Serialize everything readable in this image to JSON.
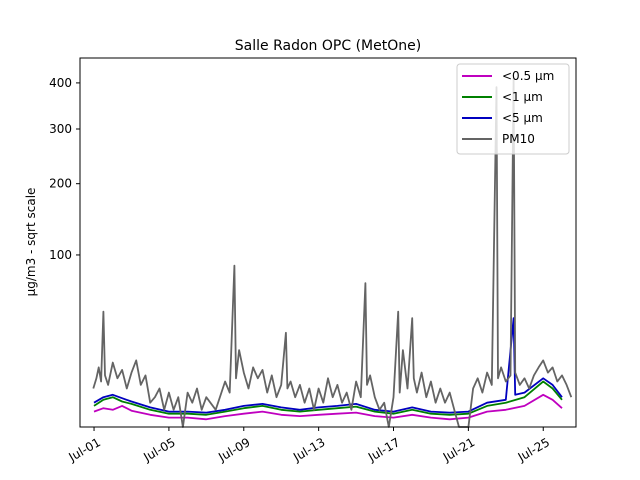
{
  "chart_data": {
    "type": "line",
    "title": "Salle Radon OPC (MetOne)",
    "xlabel": "",
    "ylabel": "µg/m3 - sqrt scale",
    "y_scale": "sqrt",
    "ylim": [
      0,
      460
    ],
    "xlim": [
      "2023-06-30T06:00",
      "2023-07-26T18:00"
    ],
    "x_ticks": [
      {
        "date": "2023-07-01",
        "label": "Jul-01"
      },
      {
        "date": "2023-07-05",
        "label": "Jul-05"
      },
      {
        "date": "2023-07-09",
        "label": "Jul-09"
      },
      {
        "date": "2023-07-13",
        "label": "Jul-13"
      },
      {
        "date": "2023-07-17",
        "label": "Jul-17"
      },
      {
        "date": "2023-07-21",
        "label": "Jul-21"
      },
      {
        "date": "2023-07-25",
        "label": "Jul-25"
      }
    ],
    "y_ticks": [
      100,
      200,
      300,
      400
    ],
    "grid": false,
    "legend_position": "top-right",
    "series": [
      {
        "name": "<0.5 µm",
        "color": "#bf00bf",
        "points": [
          [
            "2023-07-01T00:00",
            0.8
          ],
          [
            "2023-07-01T12:00",
            1.2
          ],
          [
            "2023-07-02T00:00",
            1.0
          ],
          [
            "2023-07-02T12:00",
            1.5
          ],
          [
            "2023-07-03T00:00",
            0.9
          ],
          [
            "2023-07-04T00:00",
            0.5
          ],
          [
            "2023-07-05T00:00",
            0.3
          ],
          [
            "2023-07-06T00:00",
            0.3
          ],
          [
            "2023-07-07T00:00",
            0.2
          ],
          [
            "2023-07-08T00:00",
            0.4
          ],
          [
            "2023-07-09T00:00",
            0.6
          ],
          [
            "2023-07-10T00:00",
            0.8
          ],
          [
            "2023-07-11T00:00",
            0.5
          ],
          [
            "2023-07-12T00:00",
            0.4
          ],
          [
            "2023-07-13T00:00",
            0.5
          ],
          [
            "2023-07-14T00:00",
            0.6
          ],
          [
            "2023-07-15T00:00",
            0.7
          ],
          [
            "2023-07-16T00:00",
            0.4
          ],
          [
            "2023-07-17T00:00",
            0.3
          ],
          [
            "2023-07-18T00:00",
            0.5
          ],
          [
            "2023-07-19T00:00",
            0.3
          ],
          [
            "2023-07-20T00:00",
            0.2
          ],
          [
            "2023-07-21T00:00",
            0.3
          ],
          [
            "2023-07-22T00:00",
            0.8
          ],
          [
            "2023-07-23T00:00",
            1.0
          ],
          [
            "2023-07-24T00:00",
            1.5
          ],
          [
            "2023-07-25T00:00",
            3.5
          ],
          [
            "2023-07-25T12:00",
            2.5
          ],
          [
            "2023-07-26T00:00",
            1.2
          ]
        ]
      },
      {
        "name": "<1 µm",
        "color": "#008000",
        "points": [
          [
            "2023-07-01T00:00",
            1.5
          ],
          [
            "2023-07-01T12:00",
            2.5
          ],
          [
            "2023-07-02T00:00",
            3.0
          ],
          [
            "2023-07-02T12:00",
            2.2
          ],
          [
            "2023-07-03T00:00",
            1.8
          ],
          [
            "2023-07-04T00:00",
            1.0
          ],
          [
            "2023-07-05T00:00",
            0.6
          ],
          [
            "2023-07-06T00:00",
            0.6
          ],
          [
            "2023-07-07T00:00",
            0.5
          ],
          [
            "2023-07-08T00:00",
            0.8
          ],
          [
            "2023-07-09T00:00",
            1.2
          ],
          [
            "2023-07-10T00:00",
            1.5
          ],
          [
            "2023-07-11T00:00",
            1.0
          ],
          [
            "2023-07-12T00:00",
            0.8
          ],
          [
            "2023-07-13T00:00",
            1.0
          ],
          [
            "2023-07-14T00:00",
            1.2
          ],
          [
            "2023-07-15T00:00",
            1.4
          ],
          [
            "2023-07-16T00:00",
            0.8
          ],
          [
            "2023-07-17T00:00",
            0.6
          ],
          [
            "2023-07-18T00:00",
            1.0
          ],
          [
            "2023-07-19T00:00",
            0.6
          ],
          [
            "2023-07-20T00:00",
            0.5
          ],
          [
            "2023-07-21T00:00",
            0.6
          ],
          [
            "2023-07-22T00:00",
            1.5
          ],
          [
            "2023-07-23T00:00",
            2.0
          ],
          [
            "2023-07-24T00:00",
            3.0
          ],
          [
            "2023-07-25T00:00",
            7.0
          ],
          [
            "2023-07-25T12:00",
            5.0
          ],
          [
            "2023-07-26T00:00",
            2.5
          ]
        ]
      },
      {
        "name": "<5 µm",
        "color": "#0000bf",
        "points": [
          [
            "2023-07-01T00:00",
            2.0
          ],
          [
            "2023-07-01T12:00",
            3.0
          ],
          [
            "2023-07-02T00:00",
            3.5
          ],
          [
            "2023-07-02T12:00",
            2.8
          ],
          [
            "2023-07-03T00:00",
            2.2
          ],
          [
            "2023-07-04T00:00",
            1.3
          ],
          [
            "2023-07-05T00:00",
            0.8
          ],
          [
            "2023-07-06T00:00",
            0.8
          ],
          [
            "2023-07-07T00:00",
            0.7
          ],
          [
            "2023-07-08T00:00",
            1.0
          ],
          [
            "2023-07-09T00:00",
            1.5
          ],
          [
            "2023-07-10T00:00",
            1.8
          ],
          [
            "2023-07-11T00:00",
            1.3
          ],
          [
            "2023-07-12T00:00",
            1.0
          ],
          [
            "2023-07-13T00:00",
            1.3
          ],
          [
            "2023-07-14T00:00",
            1.5
          ],
          [
            "2023-07-15T00:00",
            1.8
          ],
          [
            "2023-07-16T00:00",
            1.0
          ],
          [
            "2023-07-17T00:00",
            0.8
          ],
          [
            "2023-07-18T00:00",
            1.3
          ],
          [
            "2023-07-19T00:00",
            0.8
          ],
          [
            "2023-07-20T00:00",
            0.7
          ],
          [
            "2023-07-21T00:00",
            0.8
          ],
          [
            "2023-07-22T00:00",
            2.0
          ],
          [
            "2023-07-23T00:00",
            2.5
          ],
          [
            "2023-07-23T10:00",
            40.0
          ],
          [
            "2023-07-23T12:00",
            3.5
          ],
          [
            "2023-07-24T00:00",
            4.0
          ],
          [
            "2023-07-25T00:00",
            8.0
          ],
          [
            "2023-07-25T12:00",
            6.0
          ],
          [
            "2023-07-26T00:00",
            3.0
          ]
        ]
      },
      {
        "name": "PM10",
        "color": "#646464",
        "points": [
          [
            "2023-06-30T23:00",
            5
          ],
          [
            "2023-07-01T03:00",
            8
          ],
          [
            "2023-07-01T06:00",
            12
          ],
          [
            "2023-07-01T09:00",
            7
          ],
          [
            "2023-07-01T12:00",
            45
          ],
          [
            "2023-07-01T14:00",
            9
          ],
          [
            "2023-07-01T18:00",
            6
          ],
          [
            "2023-07-02T00:00",
            14
          ],
          [
            "2023-07-02T06:00",
            8
          ],
          [
            "2023-07-02T12:00",
            11
          ],
          [
            "2023-07-02T18:00",
            5
          ],
          [
            "2023-07-03T00:00",
            10
          ],
          [
            "2023-07-03T06:00",
            15
          ],
          [
            "2023-07-03T12:00",
            6
          ],
          [
            "2023-07-03T18:00",
            9
          ],
          [
            "2023-07-04T00:00",
            2
          ],
          [
            "2023-07-04T06:00",
            3
          ],
          [
            "2023-07-04T12:00",
            5
          ],
          [
            "2023-07-04T18:00",
            1
          ],
          [
            "2023-07-05T00:00",
            4
          ],
          [
            "2023-07-05T06:00",
            1
          ],
          [
            "2023-07-05T12:00",
            3
          ],
          [
            "2023-07-05T18:00",
            0
          ],
          [
            "2023-07-06T00:00",
            4
          ],
          [
            "2023-07-06T06:00",
            2
          ],
          [
            "2023-07-06T12:00",
            5
          ],
          [
            "2023-07-06T18:00",
            1
          ],
          [
            "2023-07-07T00:00",
            3
          ],
          [
            "2023-07-07T12:00",
            1
          ],
          [
            "2023-07-08T00:00",
            7
          ],
          [
            "2023-07-08T06:00",
            4
          ],
          [
            "2023-07-08T12:00",
            88
          ],
          [
            "2023-07-08T14:00",
            8
          ],
          [
            "2023-07-08T18:00",
            20
          ],
          [
            "2023-07-09T00:00",
            10
          ],
          [
            "2023-07-09T06:00",
            5
          ],
          [
            "2023-07-09T12:00",
            12
          ],
          [
            "2023-07-09T18:00",
            8
          ],
          [
            "2023-07-10T00:00",
            11
          ],
          [
            "2023-07-10T06:00",
            4
          ],
          [
            "2023-07-10T12:00",
            9
          ],
          [
            "2023-07-10T18:00",
            3
          ],
          [
            "2023-07-11T00:00",
            6
          ],
          [
            "2023-07-11T06:00",
            30
          ],
          [
            "2023-07-11T08:00",
            5
          ],
          [
            "2023-07-11T12:00",
            7
          ],
          [
            "2023-07-11T18:00",
            3
          ],
          [
            "2023-07-12T00:00",
            6
          ],
          [
            "2023-07-12T06:00",
            2
          ],
          [
            "2023-07-12T12:00",
            5
          ],
          [
            "2023-07-12T18:00",
            1
          ],
          [
            "2023-07-13T00:00",
            5
          ],
          [
            "2023-07-13T06:00",
            2
          ],
          [
            "2023-07-13T12:00",
            8
          ],
          [
            "2023-07-13T18:00",
            3
          ],
          [
            "2023-07-14T00:00",
            6
          ],
          [
            "2023-07-14T06:00",
            2
          ],
          [
            "2023-07-14T12:00",
            4
          ],
          [
            "2023-07-14T18:00",
            1
          ],
          [
            "2023-07-15T00:00",
            7
          ],
          [
            "2023-07-15T06:00",
            3
          ],
          [
            "2023-07-15T12:00",
            70
          ],
          [
            "2023-07-15T14:00",
            6
          ],
          [
            "2023-07-15T18:00",
            9
          ],
          [
            "2023-07-16T00:00",
            3
          ],
          [
            "2023-07-16T06:00",
            1
          ],
          [
            "2023-07-16T12:00",
            2
          ],
          [
            "2023-07-16T18:00",
            0
          ],
          [
            "2023-07-17T00:00",
            3
          ],
          [
            "2023-07-17T06:00",
            45
          ],
          [
            "2023-07-17T08:00",
            4
          ],
          [
            "2023-07-17T12:00",
            20
          ],
          [
            "2023-07-17T18:00",
            5
          ],
          [
            "2023-07-18T00:00",
            40
          ],
          [
            "2023-07-18T02:00",
            8
          ],
          [
            "2023-07-18T06:00",
            4
          ],
          [
            "2023-07-18T12:00",
            10
          ],
          [
            "2023-07-18T18:00",
            3
          ],
          [
            "2023-07-19T00:00",
            7
          ],
          [
            "2023-07-19T06:00",
            2
          ],
          [
            "2023-07-19T12:00",
            5
          ],
          [
            "2023-07-19T18:00",
            2
          ],
          [
            "2023-07-20T00:00",
            4
          ],
          [
            "2023-07-20T06:00",
            1
          ],
          [
            "2023-07-20T12:00",
            0
          ],
          [
            "2023-07-20T18:00",
            0
          ],
          [
            "2023-07-21T00:00",
            0
          ],
          [
            "2023-07-21T06:00",
            5
          ],
          [
            "2023-07-21T12:00",
            8
          ],
          [
            "2023-07-21T18:00",
            4
          ],
          [
            "2023-07-22T00:00",
            10
          ],
          [
            "2023-07-22T06:00",
            6
          ],
          [
            "2023-07-22T12:00",
            390
          ],
          [
            "2023-07-22T14:00",
            8
          ],
          [
            "2023-07-22T18:00",
            12
          ],
          [
            "2023-07-23T00:00",
            7
          ],
          [
            "2023-07-23T06:00",
            9
          ],
          [
            "2023-07-23T10:00",
            410
          ],
          [
            "2023-07-23T12:00",
            10
          ],
          [
            "2023-07-23T18:00",
            6
          ],
          [
            "2023-07-24T00:00",
            8
          ],
          [
            "2023-07-24T06:00",
            5
          ],
          [
            "2023-07-24T12:00",
            9
          ],
          [
            "2023-07-24T18:00",
            12
          ],
          [
            "2023-07-25T00:00",
            15
          ],
          [
            "2023-07-25T06:00",
            10
          ],
          [
            "2023-07-25T12:00",
            12
          ],
          [
            "2023-07-25T18:00",
            7
          ],
          [
            "2023-07-26T00:00",
            9
          ],
          [
            "2023-07-26T06:00",
            6
          ],
          [
            "2023-07-26T12:00",
            3
          ]
        ]
      }
    ]
  }
}
